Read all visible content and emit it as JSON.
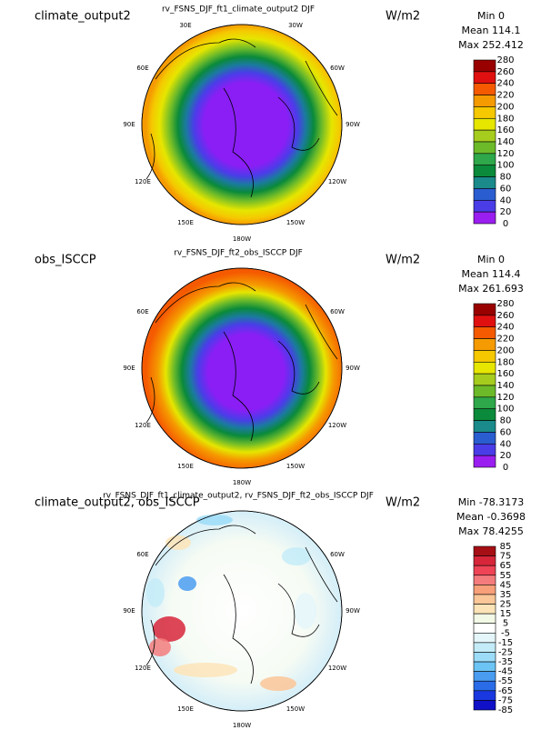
{
  "panels": [
    {
      "left_title": "climate_output2",
      "center_title": "rv_FSNS_DJF_ft1_climate_output2  DJF",
      "units": "W/m2",
      "stats": [
        "Min 0",
        "Mean 114.1",
        "Max 252.412"
      ],
      "longitudes": [
        "30E",
        "30W",
        "60E",
        "60W",
        "90E",
        "90W",
        "120E",
        "120W",
        "150E",
        "150W",
        "180W"
      ],
      "colorbar": {
        "labels": [
          "280",
          "260",
          "240",
          "220",
          "200",
          "180",
          "160",
          "140",
          "120",
          "100",
          "80",
          "60",
          "40",
          "20",
          "0"
        ],
        "colors": [
          "#990000",
          "#e01010",
          "#f55a00",
          "#f59a00",
          "#f5c800",
          "#e6e600",
          "#a6cc1e",
          "#6cba2a",
          "#2ea84a",
          "#0a8a3a",
          "#1b8a8a",
          "#2a5ed0",
          "#4a3de8",
          "#9b1ef0"
        ]
      }
    },
    {
      "left_title": "obs_ISCCP",
      "center_title": "rv_FSNS_DJF_ft2_obs_ISCCP  DJF",
      "units": "W/m2",
      "stats": [
        "Min 0",
        "Mean 114.4",
        "Max 261.693"
      ],
      "longitudes": [
        "60E",
        "60W",
        "90E",
        "90W",
        "120E",
        "120W",
        "150E",
        "150W",
        "180W"
      ],
      "colorbar": {
        "labels": [
          "280",
          "260",
          "240",
          "220",
          "200",
          "180",
          "160",
          "140",
          "120",
          "100",
          "80",
          "60",
          "40",
          "20",
          "0"
        ],
        "colors": [
          "#990000",
          "#e01010",
          "#f55a00",
          "#f59a00",
          "#f5c800",
          "#e6e600",
          "#a6cc1e",
          "#6cba2a",
          "#2ea84a",
          "#0a8a3a",
          "#1b8a8a",
          "#2a5ed0",
          "#4a3de8",
          "#9b1ef0"
        ]
      }
    },
    {
      "left_title": "climate_output2, obs_ISCCP",
      "center_title": "rv_FSNS_DJF_ft1_climate_output2,  rv_FSNS_DJF_ft2_obs_ISCCP  DJF",
      "units": "W/m2",
      "stats": [
        "Min -78.3173",
        "Mean -0.3698",
        "Max 78.4255"
      ],
      "longitudes": [
        "60E",
        "60W",
        "90E",
        "90W",
        "120E",
        "120W",
        "150E",
        "150W",
        "180W"
      ],
      "colorbar": {
        "labels": [
          "85",
          "75",
          "65",
          "55",
          "45",
          "35",
          "25",
          "15",
          "5",
          "-5",
          "-15",
          "-25",
          "-35",
          "-45",
          "-55",
          "-65",
          "-75",
          "-85"
        ],
        "colors": [
          "#a50f15",
          "#d7263a",
          "#ee4455",
          "#f47c7c",
          "#f8a07a",
          "#fbc698",
          "#fde4b8",
          "#f2f9e6",
          "#ffffff",
          "#e4f6fa",
          "#c4ecf8",
          "#9cdcf8",
          "#6cc4f5",
          "#4a9cf0",
          "#2a6ce8",
          "#1a38e0",
          "#1010c8"
        ]
      }
    }
  ]
}
